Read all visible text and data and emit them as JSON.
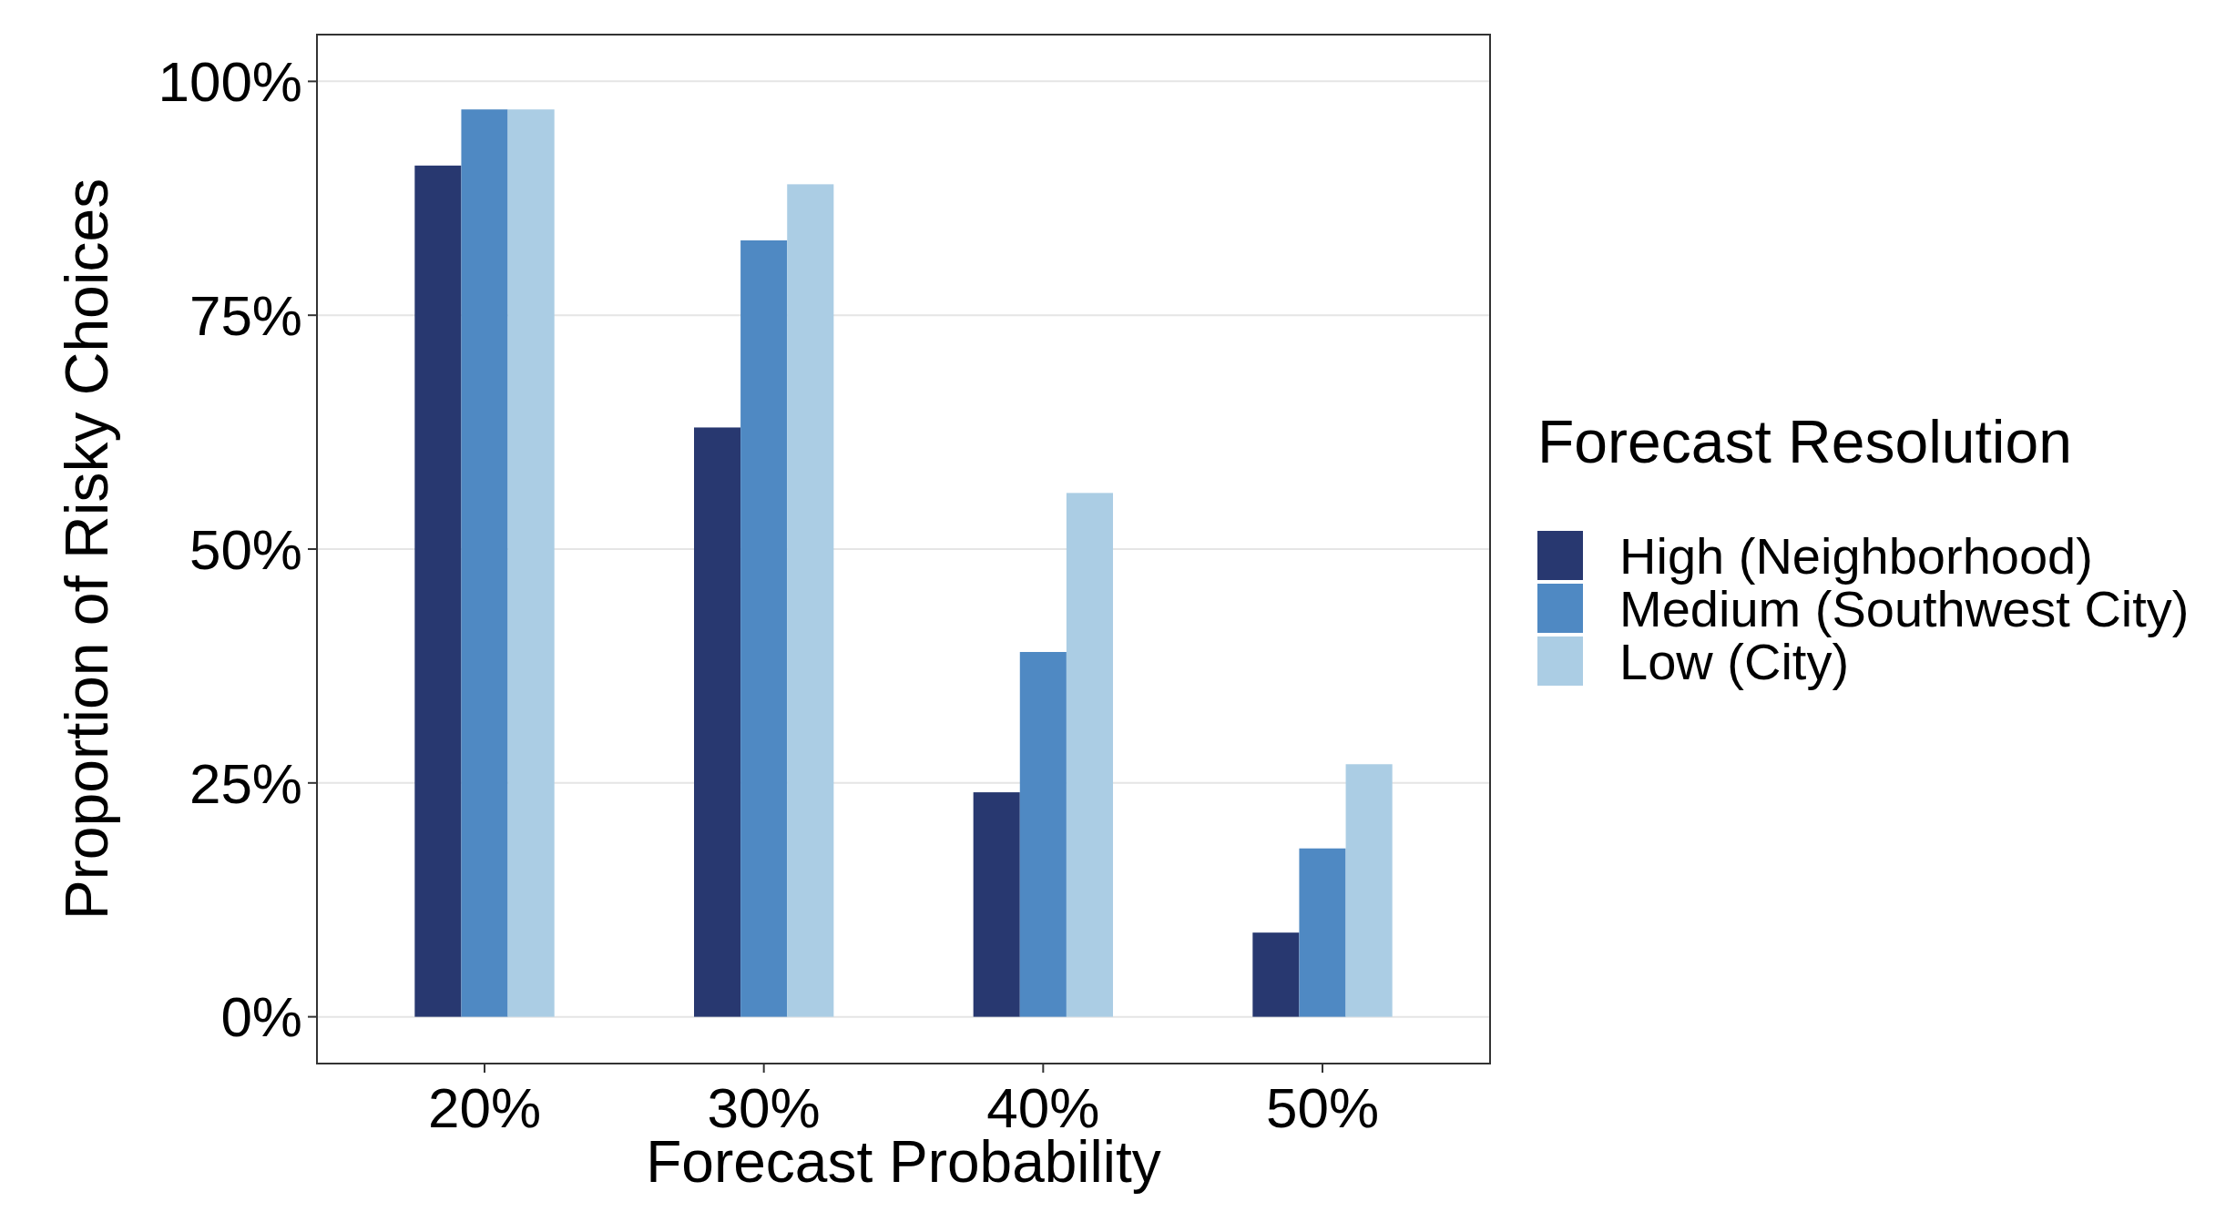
{
  "chart_data": {
    "type": "bar",
    "xlabel": "Forecast Probability",
    "ylabel": "Proportion of Risky Choices",
    "legend_title": "Forecast Resolution",
    "categories": [
      "20%",
      "30%",
      "40%",
      "50%"
    ],
    "series": [
      {
        "name": "High (Neighborhood)",
        "color": "#283870",
        "values": [
          91,
          63,
          24,
          9
        ]
      },
      {
        "name": "Medium (Southwest City)",
        "color": "#4f89c3",
        "values": [
          97,
          83,
          39,
          18
        ]
      },
      {
        "name": "Low (City)",
        "color": "#abcde4",
        "values": [
          97,
          89,
          56,
          27
        ]
      }
    ],
    "ylim": [
      -5,
      105
    ],
    "yticks": [
      {
        "value": 0,
        "label": "0%"
      },
      {
        "value": 25,
        "label": "25%"
      },
      {
        "value": 50,
        "label": "50%"
      },
      {
        "value": 75,
        "label": "75%"
      },
      {
        "value": 100,
        "label": "100%"
      }
    ],
    "grid": "y",
    "legend": "right"
  }
}
